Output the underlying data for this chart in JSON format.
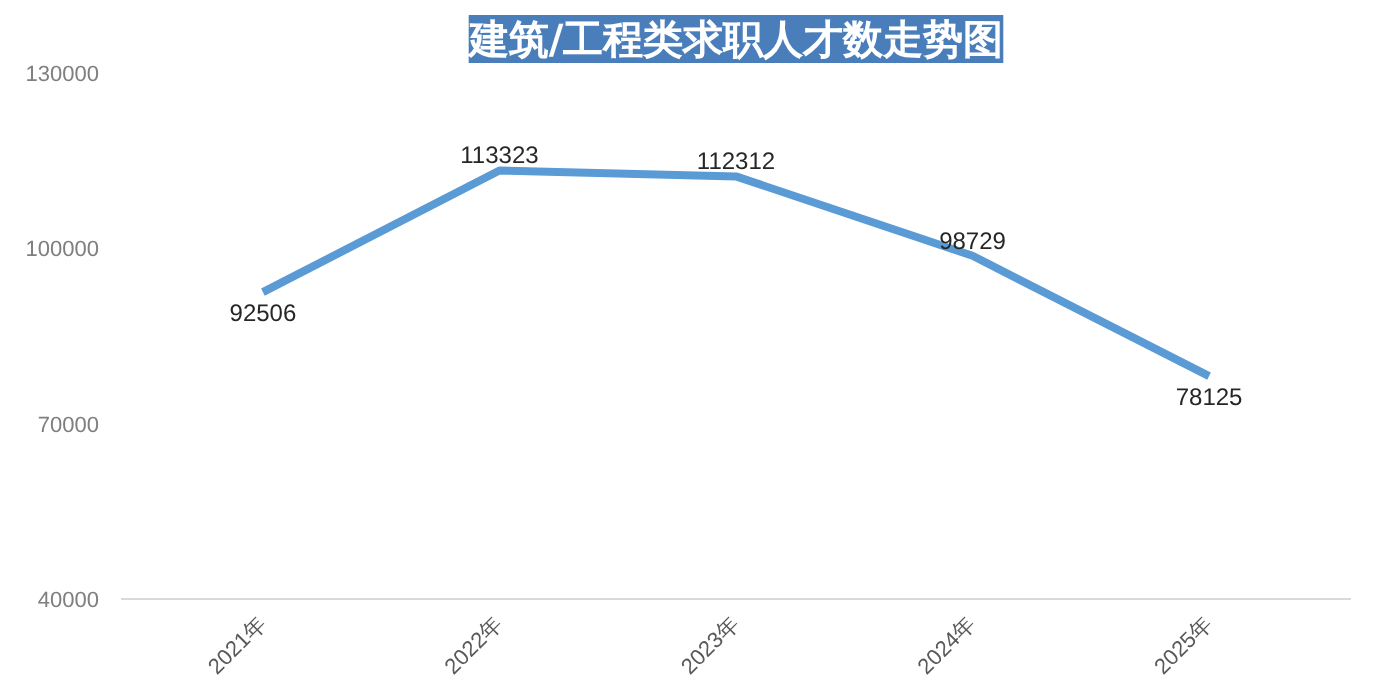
{
  "chart_data": {
    "type": "line",
    "title": "建筑/工程类求职人才数走势图",
    "categories": [
      "2021年",
      "2022年",
      "2023年",
      "2024年",
      "2025年"
    ],
    "series": [
      {
        "color": "#5b9bd5",
        "values": [
          92506,
          113323,
          112312,
          98729,
          78125
        ]
      }
    ],
    "ylim": [
      40000,
      130000
    ],
    "yticks": [
      40000,
      70000,
      100000,
      130000
    ],
    "data_labels": true,
    "grid": false,
    "marker": "none",
    "line_style": "solid"
  }
}
